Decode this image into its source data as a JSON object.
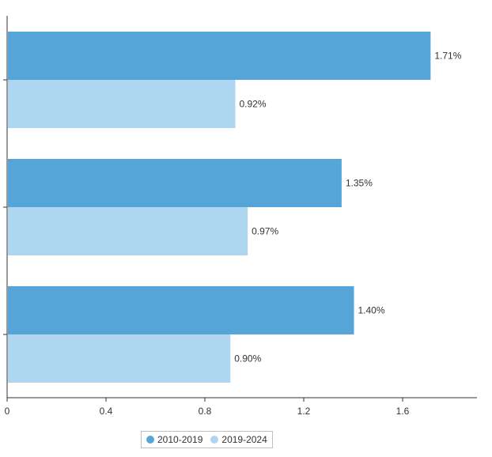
{
  "chart_data": {
    "type": "bar",
    "orientation": "horizontal",
    "categories": [
      "",
      "",
      ""
    ],
    "series": [
      {
        "name": "2010-2019",
        "color": "#56a5d9",
        "values": [
          1.71,
          1.35,
          1.4
        ],
        "labels": [
          "1.71%",
          "1.35%",
          "1.40%"
        ]
      },
      {
        "name": "2019-2024",
        "color": "#afd6f0",
        "values": [
          0.92,
          0.97,
          0.9
        ],
        "labels": [
          "0.92%",
          "0.97%",
          "0.90%"
        ]
      }
    ],
    "xlim": [
      0,
      1.94
    ],
    "xticks": [
      "0",
      "0.4",
      "0.8",
      "1.2",
      "1.6"
    ],
    "xtick_values": [
      0,
      0.4,
      0.8,
      1.2,
      1.6
    ],
    "title": "",
    "xlabel": "",
    "ylabel": "",
    "grid": false,
    "legend_position": "bottom-center"
  },
  "legend": {
    "items": [
      {
        "label": "2010-2019",
        "color": "#56a5d9"
      },
      {
        "label": "2019-2024",
        "color": "#afd6f0"
      }
    ]
  }
}
